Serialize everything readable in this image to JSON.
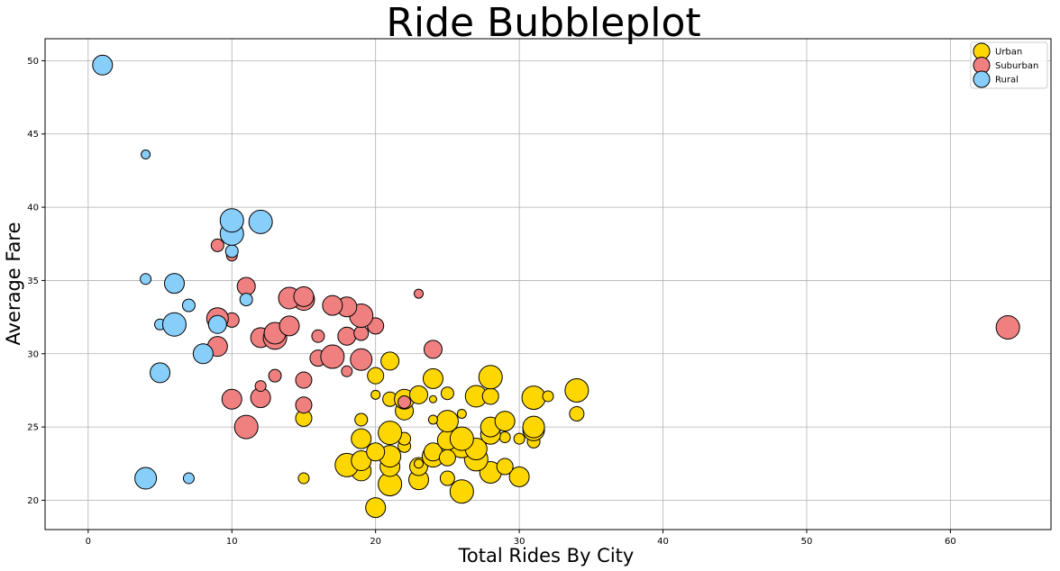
{
  "chart_data": {
    "type": "scatter",
    "title": "Ride Bubbleplot",
    "xlabel": "Total Rides By City",
    "ylabel": "Average Fare",
    "xlim": [
      -3,
      67
    ],
    "ylim": [
      18,
      51.5
    ],
    "xticks": [
      "0",
      "10",
      "20",
      "30",
      "40",
      "50",
      "60"
    ],
    "yticks": [
      "20",
      "25",
      "30",
      "35",
      "40",
      "45",
      "50"
    ],
    "grid": true,
    "legend_position": "top-right",
    "series": [
      {
        "name": "Urban",
        "color": "#FFD700",
        "points": [
          {
            "x": 20,
            "y": 19.5,
            "size": 11
          },
          {
            "x": 26,
            "y": 20.6,
            "size": 13
          },
          {
            "x": 21,
            "y": 21.1,
            "size": 13
          },
          {
            "x": 23,
            "y": 21.4,
            "size": 11
          },
          {
            "x": 25,
            "y": 21.5,
            "size": 8
          },
          {
            "x": 30,
            "y": 21.6,
            "size": 11
          },
          {
            "x": 28,
            "y": 21.9,
            "size": 12
          },
          {
            "x": 15,
            "y": 21.5,
            "size": 6
          },
          {
            "x": 19,
            "y": 22.0,
            "size": 11
          },
          {
            "x": 21,
            "y": 22.3,
            "size": 11
          },
          {
            "x": 23,
            "y": 22.3,
            "size": 10
          },
          {
            "x": 29,
            "y": 22.3,
            "size": 9
          },
          {
            "x": 18,
            "y": 22.4,
            "size": 13
          },
          {
            "x": 19,
            "y": 22.7,
            "size": 11
          },
          {
            "x": 27,
            "y": 22.8,
            "size": 13
          },
          {
            "x": 21,
            "y": 23.0,
            "size": 12
          },
          {
            "x": 24,
            "y": 23.0,
            "size": 12
          },
          {
            "x": 24,
            "y": 23.3,
            "size": 10
          },
          {
            "x": 20,
            "y": 23.3,
            "size": 10
          },
          {
            "x": 22,
            "y": 23.7,
            "size": 7
          },
          {
            "x": 26,
            "y": 23.7,
            "size": 13
          },
          {
            "x": 27,
            "y": 23.5,
            "size": 12
          },
          {
            "x": 31,
            "y": 24.0,
            "size": 7
          },
          {
            "x": 19,
            "y": 24.2,
            "size": 11
          },
          {
            "x": 22,
            "y": 24.2,
            "size": 7
          },
          {
            "x": 25,
            "y": 24.1,
            "size": 11
          },
          {
            "x": 26,
            "y": 24.2,
            "size": 13
          },
          {
            "x": 30,
            "y": 24.2,
            "size": 6
          },
          {
            "x": 29,
            "y": 24.3,
            "size": 6
          },
          {
            "x": 28,
            "y": 24.5,
            "size": 11
          },
          {
            "x": 21,
            "y": 24.6,
            "size": 13
          },
          {
            "x": 31,
            "y": 24.8,
            "size": 12
          },
          {
            "x": 28,
            "y": 25.0,
            "size": 11
          },
          {
            "x": 31,
            "y": 25.0,
            "size": 12
          },
          {
            "x": 25,
            "y": 25.4,
            "size": 12
          },
          {
            "x": 29,
            "y": 25.4,
            "size": 11
          },
          {
            "x": 19,
            "y": 25.5,
            "size": 7
          },
          {
            "x": 24,
            "y": 25.5,
            "size": 5
          },
          {
            "x": 15,
            "y": 25.6,
            "size": 9
          },
          {
            "x": 34,
            "y": 25.9,
            "size": 8
          },
          {
            "x": 26,
            "y": 25.9,
            "size": 5
          },
          {
            "x": 22,
            "y": 26.1,
            "size": 10
          },
          {
            "x": 21,
            "y": 26.9,
            "size": 8
          },
          {
            "x": 22,
            "y": 26.9,
            "size": 11
          },
          {
            "x": 24,
            "y": 26.9,
            "size": 4
          },
          {
            "x": 27,
            "y": 27.1,
            "size": 12
          },
          {
            "x": 28,
            "y": 27.1,
            "size": 9
          },
          {
            "x": 31,
            "y": 27.0,
            "size": 13
          },
          {
            "x": 32,
            "y": 27.1,
            "size": 6
          },
          {
            "x": 20,
            "y": 27.2,
            "size": 5
          },
          {
            "x": 23,
            "y": 27.2,
            "size": 10
          },
          {
            "x": 25,
            "y": 27.3,
            "size": 7
          },
          {
            "x": 34,
            "y": 27.5,
            "size": 13
          },
          {
            "x": 20,
            "y": 28.5,
            "size": 9
          },
          {
            "x": 24,
            "y": 28.3,
            "size": 11
          },
          {
            "x": 28,
            "y": 28.4,
            "size": 13
          },
          {
            "x": 21,
            "y": 29.5,
            "size": 10
          },
          {
            "x": 23,
            "y": 22.5,
            "size": 5
          },
          {
            "x": 25,
            "y": 22.9,
            "size": 9
          }
        ]
      },
      {
        "name": "Suburban",
        "color": "#F08080",
        "points": [
          {
            "x": 11,
            "y": 25.0,
            "size": 13
          },
          {
            "x": 15,
            "y": 26.5,
            "size": 9
          },
          {
            "x": 10,
            "y": 26.9,
            "size": 11
          },
          {
            "x": 12,
            "y": 27.0,
            "size": 11
          },
          {
            "x": 22,
            "y": 26.7,
            "size": 7
          },
          {
            "x": 12,
            "y": 27.8,
            "size": 6
          },
          {
            "x": 15,
            "y": 28.2,
            "size": 9
          },
          {
            "x": 13,
            "y": 28.5,
            "size": 7
          },
          {
            "x": 18,
            "y": 28.8,
            "size": 6
          },
          {
            "x": 19,
            "y": 29.6,
            "size": 12
          },
          {
            "x": 16,
            "y": 29.7,
            "size": 9
          },
          {
            "x": 17,
            "y": 29.8,
            "size": 13
          },
          {
            "x": 9,
            "y": 30.5,
            "size": 11
          },
          {
            "x": 24,
            "y": 30.3,
            "size": 10
          },
          {
            "x": 12,
            "y": 31.1,
            "size": 11
          },
          {
            "x": 13,
            "y": 31.1,
            "size": 13
          },
          {
            "x": 13,
            "y": 31.4,
            "size": 12
          },
          {
            "x": 16,
            "y": 31.2,
            "size": 7
          },
          {
            "x": 18,
            "y": 31.2,
            "size": 10
          },
          {
            "x": 19,
            "y": 31.4,
            "size": 8
          },
          {
            "x": 20,
            "y": 31.9,
            "size": 9
          },
          {
            "x": 14,
            "y": 31.9,
            "size": 11
          },
          {
            "x": 10,
            "y": 32.3,
            "size": 8
          },
          {
            "x": 9,
            "y": 32.4,
            "size": 12
          },
          {
            "x": 19,
            "y": 32.6,
            "size": 13
          },
          {
            "x": 17,
            "y": 33.0,
            "size": 6
          },
          {
            "x": 18,
            "y": 33.2,
            "size": 11
          },
          {
            "x": 17,
            "y": 33.3,
            "size": 11
          },
          {
            "x": 15,
            "y": 33.7,
            "size": 12
          },
          {
            "x": 14,
            "y": 33.8,
            "size": 12
          },
          {
            "x": 15,
            "y": 33.9,
            "size": 11
          },
          {
            "x": 23,
            "y": 34.1,
            "size": 5
          },
          {
            "x": 11,
            "y": 34.3,
            "size": 5
          },
          {
            "x": 11,
            "y": 34.6,
            "size": 10
          },
          {
            "x": 10,
            "y": 36.7,
            "size": 6
          },
          {
            "x": 9,
            "y": 37.4,
            "size": 7
          },
          {
            "x": 64,
            "y": 31.8,
            "size": 13
          }
        ]
      },
      {
        "name": "Rural",
        "color": "#87CEFA",
        "points": [
          {
            "x": 4,
            "y": 21.5,
            "size": 12
          },
          {
            "x": 7,
            "y": 21.5,
            "size": 6
          },
          {
            "x": 5,
            "y": 28.7,
            "size": 11
          },
          {
            "x": 8,
            "y": 30.0,
            "size": 11
          },
          {
            "x": 5,
            "y": 32.0,
            "size": 6
          },
          {
            "x": 6,
            "y": 32.0,
            "size": 13
          },
          {
            "x": 9,
            "y": 32.0,
            "size": 10
          },
          {
            "x": 7,
            "y": 33.3,
            "size": 7
          },
          {
            "x": 11,
            "y": 33.7,
            "size": 7
          },
          {
            "x": 6,
            "y": 34.8,
            "size": 11
          },
          {
            "x": 4,
            "y": 35.1,
            "size": 6
          },
          {
            "x": 10,
            "y": 37.0,
            "size": 7
          },
          {
            "x": 10,
            "y": 38.2,
            "size": 13
          },
          {
            "x": 10,
            "y": 39.1,
            "size": 13
          },
          {
            "x": 12,
            "y": 39.0,
            "size": 13
          },
          {
            "x": 4,
            "y": 43.6,
            "size": 5
          },
          {
            "x": 1,
            "y": 49.7,
            "size": 11
          }
        ]
      }
    ]
  }
}
